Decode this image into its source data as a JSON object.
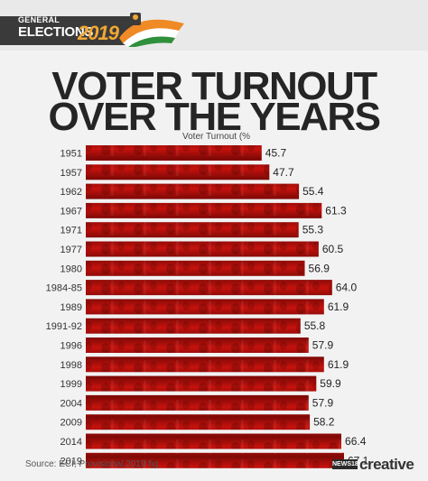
{
  "header": {
    "logo_general": "GENERAL",
    "logo_elections": "ELECTIONS",
    "logo_year": "2019"
  },
  "title_line_1": "VOTER TURNOUT",
  "title_line_2": "OVER THE YEARS",
  "source": "Source: ECI; Provisional 2019 fig",
  "brand": {
    "news": "NEWS18",
    "creative": "creative"
  },
  "colors": {
    "bar": "#c6120d",
    "bar_dark": "#7e0906",
    "title": "#252525",
    "logo_year": "#f0a832",
    "background": "#f2f2f2"
  },
  "chart_data": {
    "type": "bar",
    "orientation": "horizontal",
    "series_label": "Voter Turnout (%",
    "categories": [
      "1951",
      "1957",
      "1962",
      "1967",
      "1971",
      "1977",
      "1980",
      "1984-85",
      "1989",
      "1991-92",
      "1996",
      "1998",
      "1999",
      "2004",
      "2009",
      "2014",
      "2019"
    ],
    "values": [
      45.7,
      47.7,
      55.4,
      61.3,
      55.3,
      60.5,
      56.9,
      64.0,
      61.9,
      55.8,
      57.9,
      61.9,
      59.9,
      57.9,
      58.2,
      66.4,
      67.1
    ],
    "value_labels": [
      "45.7",
      "47.7",
      "55.4",
      "61.3",
      "55.3",
      "60.5",
      "56.9",
      "64.0",
      "61.9",
      "55.8",
      "57.9",
      "61.9",
      "59.9",
      "57.9",
      "58.2",
      "66.4",
      "67.1"
    ],
    "xlim": [
      0,
      67.1
    ],
    "grid": false,
    "legend": "none"
  }
}
